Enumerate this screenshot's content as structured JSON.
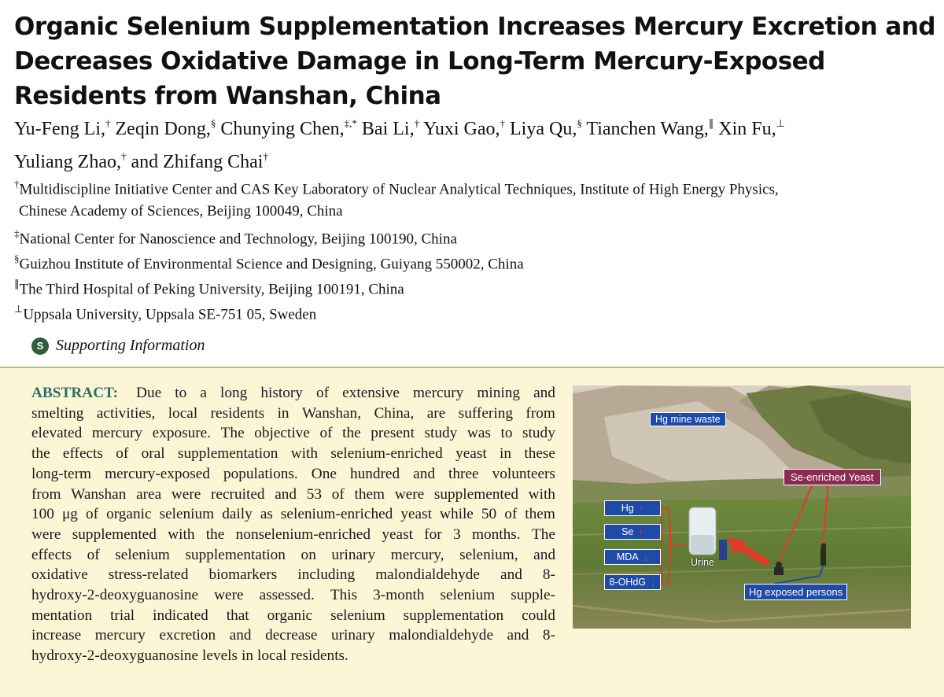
{
  "title": {
    "line1": "Organic Selenium Supplementation Increases Mercury Excretion and",
    "line2": "Decreases Oxidative Damage in Long-Term Mercury-Exposed",
    "line3": "Residents from Wanshan, China"
  },
  "authors": {
    "line1": [
      {
        "name": "Yu-Feng Li,",
        "mark": "†"
      },
      {
        "name": "Zeqin Dong,",
        "mark": "§"
      },
      {
        "name": "Chunying Chen,",
        "mark": "‡,*"
      },
      {
        "name": "Bai Li,",
        "mark": "†"
      },
      {
        "name": "Yuxi Gao,",
        "mark": "†"
      },
      {
        "name": "Liya Qu,",
        "mark": "§"
      },
      {
        "name": "Tianchen Wang,",
        "mark": "∥"
      },
      {
        "name": "Xin Fu,",
        "mark": "⊥"
      }
    ],
    "line2": [
      {
        "name": "Yuliang Zhao,",
        "mark": "†"
      },
      {
        "name": "and Zhifang Chai",
        "mark": "†"
      }
    ]
  },
  "affiliations": [
    {
      "mark": "†",
      "text": "Multidiscipline Initiative Center and CAS Key Laboratory of Nuclear Analytical Techniques, Institute of High Energy Physics,"
    },
    {
      "mark": "",
      "text": "Chinese Academy of Sciences, Beijing 100049, China"
    },
    {
      "mark": "‡",
      "text": "National Center for Nanoscience and Technology, Beijing 100190, China"
    },
    {
      "mark": "§",
      "text": "Guizhou Institute of Environmental Science and Designing, Guiyang 550002, China"
    },
    {
      "mark": "∥",
      "text": "The Third Hospital of Peking University, Beijing 100191, China"
    },
    {
      "mark": "⊥",
      "text": "Uppsala University, Uppsala SE-751 05, Sweden"
    }
  ],
  "supporting": {
    "icon": "S",
    "label": "Supporting Information"
  },
  "abstract": {
    "keyword": "ABSTRACT:",
    "lines": [
      "Due to a long history of extensive mercury mining and",
      "smelting activities, local residents in Wanshan, China, are suffering from",
      "elevated mercury exposure. The objective of the present study was to study",
      "the effects of oral supplementation with selenium-enriched yeast in these",
      "long-term mercury-exposed populations. One hundred and three volunteers",
      "from Wanshan area were recruited and 53 of them were supplemented with",
      "100 μg of organic selenium daily as selenium-enriched yeast while 50 of them",
      "were supplemented with the nonselenium-enriched yeast for 3 months. The",
      "effects of selenium supplementation on urinary mercury, selenium, and",
      "oxidative stress-related biomarkers including malondialdehyde and 8-",
      "hydroxy-2-deoxyguanosine were assessed. This 3-month selenium supple-",
      "mentation trial indicated that organic selenium supplementation could",
      "increase mercury excretion and decrease urinary malondialdehyde and 8-",
      "hydroxy-2-deoxyguanosine levels in local residents."
    ]
  },
  "toc_graphic": {
    "hg_mine_waste": "Hg mine waste",
    "se_yeast": "Se-enriched Yeast",
    "urine": "Urine",
    "hg_persons": "Hg exposed persons",
    "biomarkers": [
      {
        "label": "Hg",
        "direction": "up"
      },
      {
        "label": "Se",
        "direction": "up"
      },
      {
        "label": "MDA",
        "direction": "down"
      },
      {
        "label": "8-OHdG",
        "direction": "down"
      }
    ],
    "colors": {
      "label_blue": "#1e4aa8",
      "label_maroon": "#8b2a52",
      "arrow_red": "#e23a2a"
    }
  }
}
